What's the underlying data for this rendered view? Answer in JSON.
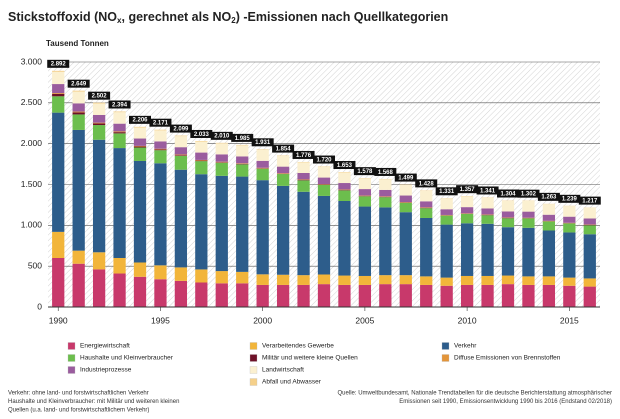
{
  "chart_data": {
    "type": "stacked_bar",
    "title_parts": [
      "Stickstoffoxid (NO",
      "x",
      ", gerechnet als NO",
      "2",
      ") -Emissionen nach Quellkategorien"
    ],
    "y_label": "Tausend Tonnen",
    "categories": [
      "1990",
      null,
      null,
      null,
      null,
      "1995",
      null,
      null,
      null,
      null,
      "2000",
      null,
      null,
      null,
      null,
      "2005",
      null,
      null,
      null,
      null,
      "2010",
      null,
      null,
      null,
      null,
      "2015",
      null
    ],
    "ylim": [
      0,
      3000
    ],
    "yticks": [
      {
        "value": 0,
        "label": "0"
      },
      {
        "value": 500,
        "label": "500"
      },
      {
        "value": 1000,
        "label": "1.000"
      },
      {
        "value": 1500,
        "label": "1.500"
      },
      {
        "value": 2000,
        "label": "2.000"
      },
      {
        "value": 2500,
        "label": "2.500"
      },
      {
        "value": 3000,
        "label": "3.000"
      }
    ],
    "grid": true,
    "series": [
      {
        "name": "Energiewirtschaft",
        "color": "#c8396b",
        "values": [
          600,
          530,
          460,
          410,
          370,
          340,
          320,
          300,
          290,
          290,
          270,
          270,
          270,
          280,
          270,
          270,
          280,
          280,
          270,
          260,
          270,
          270,
          280,
          270,
          270,
          260,
          250
        ]
      },
      {
        "name": "Verarbeitendes Gewerbe",
        "color": "#f2b53a",
        "values": [
          320,
          160,
          210,
          190,
          175,
          170,
          165,
          160,
          150,
          140,
          130,
          125,
          120,
          118,
          115,
          110,
          110,
          110,
          105,
          100,
          110,
          110,
          105,
          105,
          105,
          100,
          100
        ]
      },
      {
        "name": "Verkehr",
        "color": "#2d5d8b",
        "values": [
          1460,
          1478,
          1378,
          1346,
          1243,
          1250,
          1196,
          1166,
          1166,
          1167,
          1153,
          1088,
          1021,
          962,
          913,
          850,
          830,
          771,
          715,
          649,
          645,
          639,
          592,
          595,
          562,
          553,
          541
        ]
      },
      {
        "name": "Haushalte und Kleinverbraucher",
        "color": "#6cbe4d",
        "values": [
          200,
          190,
          180,
          180,
          165,
          160,
          170,
          160,
          160,
          150,
          140,
          145,
          140,
          135,
          130,
          125,
          125,
          115,
          120,
          110,
          115,
          105,
          110,
          115,
          110,
          110,
          110
        ]
      },
      {
        "name": "Militär und weitere kleine Quellen",
        "color": "#6e1128",
        "values": [
          30,
          25,
          20,
          15,
          12,
          10,
          8,
          7,
          6,
          5,
          5,
          4,
          4,
          4,
          4,
          3,
          3,
          3,
          3,
          3,
          3,
          3,
          3,
          3,
          3,
          3,
          3
        ]
      },
      {
        "name": "Diffuse Emissionen von Brennstoffen",
        "color": "#e3953a",
        "values": [
          10,
          10,
          9,
          9,
          8,
          8,
          8,
          8,
          7,
          7,
          7,
          7,
          6,
          6,
          6,
          6,
          6,
          6,
          6,
          5,
          5,
          5,
          5,
          5,
          5,
          5,
          5
        ]
      },
      {
        "name": "Industrieprozesse",
        "color": "#9a5c9e",
        "values": [
          110,
          100,
          95,
          95,
          90,
          90,
          90,
          90,
          90,
          85,
          85,
          80,
          80,
          80,
          80,
          80,
          80,
          80,
          75,
          70,
          75,
          75,
          75,
          75,
          75,
          75,
          75
        ]
      },
      {
        "name": "Landwirtschaft",
        "color": "#fbf0d0",
        "values": [
          150,
          145,
          140,
          140,
          135,
          135,
          135,
          135,
          135,
          135,
          135,
          130,
          130,
          130,
          130,
          130,
          130,
          130,
          130,
          130,
          130,
          130,
          130,
          130,
          130,
          130,
          130
        ]
      },
      {
        "name": "Abfall und Abwasser",
        "color": "#f5d08a",
        "values": [
          12,
          11,
          10,
          9,
          8,
          8,
          7,
          7,
          6,
          6,
          6,
          5,
          5,
          5,
          5,
          4,
          4,
          4,
          4,
          4,
          4,
          4,
          4,
          4,
          3,
          3,
          3
        ]
      }
    ],
    "totals": {
      "values": [
        2892,
        2649,
        2502,
        2394,
        2206,
        2171,
        2099,
        2033,
        2010,
        1985,
        1931,
        1854,
        1776,
        1720,
        1653,
        1578,
        1568,
        1499,
        1428,
        1331,
        1357,
        1341,
        1304,
        1302,
        1263,
        1239,
        1217
      ],
      "value_labels": [
        "2.892",
        "2.649",
        "2.502",
        "2.394",
        "2.206",
        "2.171",
        "2.099",
        "2.033",
        "2.010",
        "1.985",
        "1.931",
        "1.854",
        "1.776",
        "1.720",
        "1.653",
        "1.578",
        "1.568",
        "1.499",
        "1.428",
        "1.331",
        "1.357",
        "1.341",
        "1.304",
        "1.302",
        "1.263",
        "1.239",
        "1.217"
      ]
    },
    "notes_left": [
      "Verkehr: ohne land- und forstwirtschaftlichen Verkehr",
      "Haushalte und Kleinverbraucher: mit Militär und weiteren kleinen",
      "Quellen (u.a. land- und forstwirtschaftlichem Verkehr)"
    ],
    "notes_right": [
      "Quelle: Umweltbundesamt, Nationale Trendtabellen für die deutsche Berichterstattung atmosphärischer",
      "Emissionen seit 1990, Emissionsentwicklung 1990 bis 2016 (Endstand 02/2018)"
    ]
  }
}
